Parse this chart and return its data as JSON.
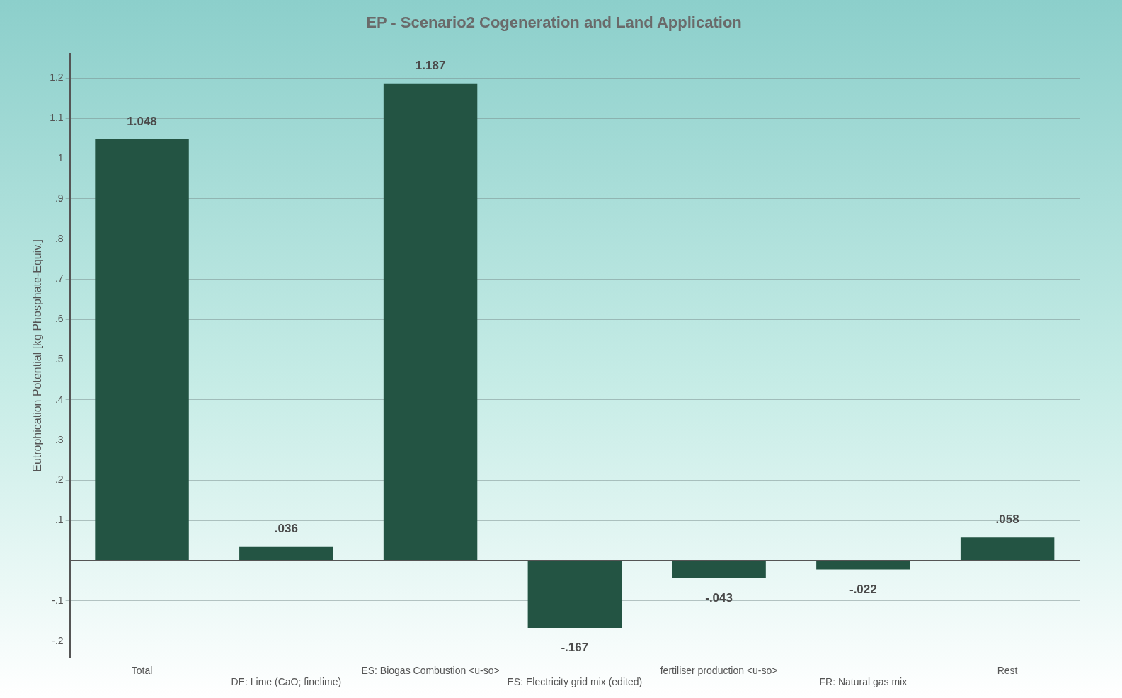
{
  "chart_data": {
    "type": "bar",
    "title": "EP - Scenario2 Cogeneration and Land Application",
    "ylabel": "Eutrophication Potential [kg Phosphate-Equiv.]",
    "categories": [
      "Total",
      "DE: Lime (CaO; finelime)",
      "ES: Biogas Combustion <u-so>",
      "ES: Electricity grid mix (edited)",
      "fertiliser production <u-so>",
      "FR: Natural gas mix",
      "Rest"
    ],
    "values": [
      1.048,
      0.036,
      1.187,
      -0.167,
      -0.043,
      -0.022,
      0.058
    ],
    "value_labels": [
      "1.048",
      ".036",
      "1.187",
      "-.167",
      "-.043",
      "-.022",
      ".058"
    ],
    "color": "#235443",
    "ylim": [
      -0.24,
      1.26
    ],
    "yticks": [
      {
        "value": -0.2,
        "label": "-.2"
      },
      {
        "value": -0.1,
        "label": "-.1"
      },
      {
        "value": 0.1,
        "label": ".1"
      },
      {
        "value": 0.2,
        "label": ".2"
      },
      {
        "value": 0.3,
        "label": ".3"
      },
      {
        "value": 0.4,
        "label": ".4"
      },
      {
        "value": 0.5,
        "label": ".5"
      },
      {
        "value": 0.6,
        "label": ".6"
      },
      {
        "value": 0.7,
        "label": ".7"
      },
      {
        "value": 0.8,
        "label": ".8"
      },
      {
        "value": 0.9,
        "label": ".9"
      },
      {
        "value": 1,
        "label": "1"
      },
      {
        "value": 1.1,
        "label": "1.1"
      },
      {
        "value": 1.2,
        "label": "1.2"
      }
    ],
    "grid": "y",
    "legend": false
  }
}
